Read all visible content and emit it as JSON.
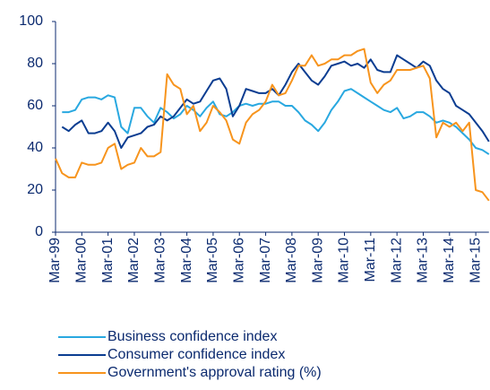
{
  "chart_data": {
    "type": "line",
    "categories": [
      "Mar-99",
      null,
      null,
      null,
      "Mar-00",
      null,
      null,
      null,
      "Mar-01",
      null,
      null,
      null,
      "Mar-02",
      null,
      null,
      null,
      "Mar-03",
      null,
      null,
      null,
      "Mar-04",
      null,
      null,
      null,
      "Mar-05",
      null,
      null,
      null,
      "Mar-06",
      null,
      null,
      null,
      "Mar-07",
      null,
      null,
      null,
      "Mar-08",
      null,
      null,
      null,
      "Mar-09",
      null,
      null,
      null,
      "Mar-10",
      null,
      null,
      null,
      "Mar-11",
      null,
      null,
      null,
      "Mar-12",
      null,
      null,
      null,
      "Mar-13",
      null,
      null,
      null,
      "Mar-14",
      null,
      null,
      null,
      "Mar-15",
      null,
      null
    ],
    "series": [
      {
        "name": "Business confidence index",
        "color": "#29a8e0",
        "values": [
          null,
          57,
          57,
          58,
          63,
          64,
          64,
          63,
          65,
          64,
          50,
          47,
          59,
          59,
          55,
          52,
          59,
          57,
          54,
          56,
          60,
          58,
          55,
          59,
          62,
          56,
          55,
          57,
          60,
          61,
          60,
          61,
          61,
          62,
          62,
          60,
          60,
          57,
          53,
          51,
          48,
          52,
          58,
          62,
          67,
          68,
          66,
          64,
          62,
          60,
          58,
          57,
          59,
          54,
          55,
          57,
          57,
          55,
          52,
          53,
          52,
          50,
          47,
          44,
          40,
          39,
          37
        ]
      },
      {
        "name": "Consumer confidence index",
        "color": "#0b3d91",
        "values": [
          null,
          50,
          48,
          51,
          53,
          47,
          47,
          48,
          52,
          48,
          40,
          45,
          46,
          47,
          50,
          51,
          55,
          53,
          55,
          59,
          63,
          61,
          62,
          67,
          72,
          73,
          68,
          55,
          60,
          68,
          67,
          66,
          66,
          68,
          65,
          70,
          76,
          80,
          76,
          72,
          70,
          74,
          79,
          80,
          81,
          79,
          80,
          78,
          82,
          77,
          76,
          76,
          84,
          82,
          80,
          78,
          81,
          79,
          72,
          68,
          66,
          60,
          58,
          56,
          52,
          48,
          43
        ]
      },
      {
        "name": "Government's approval rating (%)",
        "color": "#f7941d",
        "values": [
          35,
          28,
          26,
          26,
          33,
          32,
          32,
          33,
          40,
          42,
          30,
          32,
          33,
          40,
          36,
          36,
          38,
          75,
          70,
          68,
          56,
          60,
          48,
          52,
          60,
          57,
          53,
          44,
          42,
          52,
          56,
          58,
          62,
          70,
          65,
          66,
          72,
          79,
          79,
          84,
          79,
          80,
          82,
          82,
          84,
          84,
          86,
          87,
          71,
          66,
          70,
          72,
          77,
          77,
          77,
          78,
          79,
          73,
          45,
          52,
          50,
          52,
          48,
          52,
          20,
          19,
          15
        ]
      }
    ],
    "ylim": [
      0,
      100
    ],
    "yticks": [
      0,
      20,
      40,
      60,
      80,
      100
    ]
  }
}
